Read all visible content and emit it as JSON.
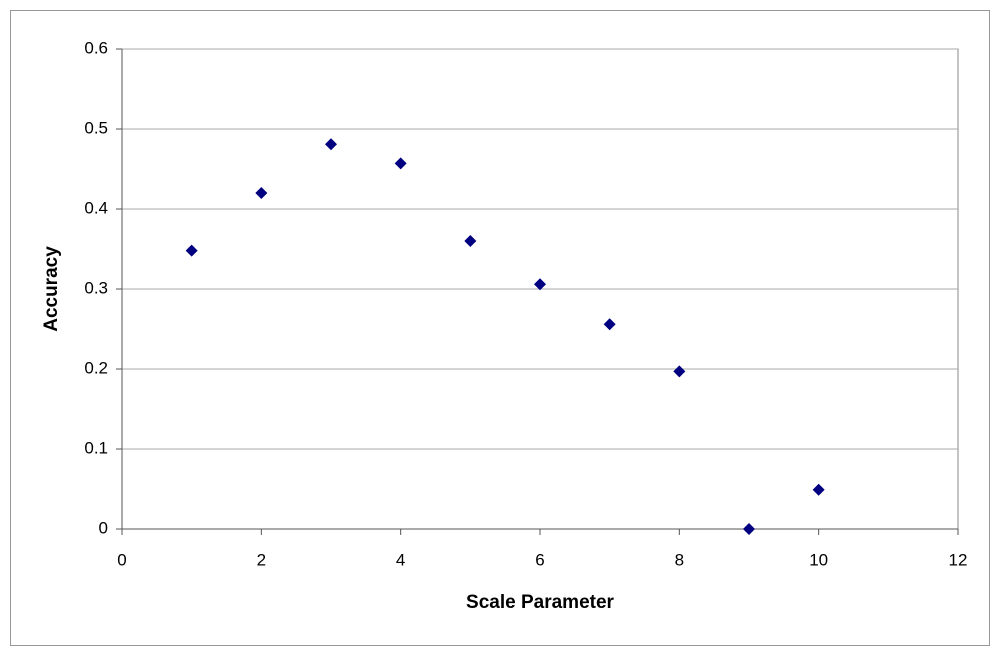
{
  "chart_data": {
    "type": "scatter",
    "x_label": "Scale Parameter",
    "y_label": "Accuracy",
    "x": [
      1,
      2,
      3,
      4,
      5,
      6,
      7,
      8,
      9,
      10
    ],
    "values": [
      0.348,
      0.42,
      0.481,
      0.457,
      0.36,
      0.306,
      0.256,
      0.197,
      0,
      0.049
    ],
    "color": "#000080",
    "xlim": [
      0,
      12
    ],
    "xticks": [
      0,
      2,
      4,
      6,
      8,
      10,
      12
    ],
    "ylim": [
      0,
      0.6
    ],
    "yticks": [
      0,
      0.1,
      0.2,
      0.3,
      0.4,
      0.5,
      0.6
    ],
    "grid": true
  }
}
